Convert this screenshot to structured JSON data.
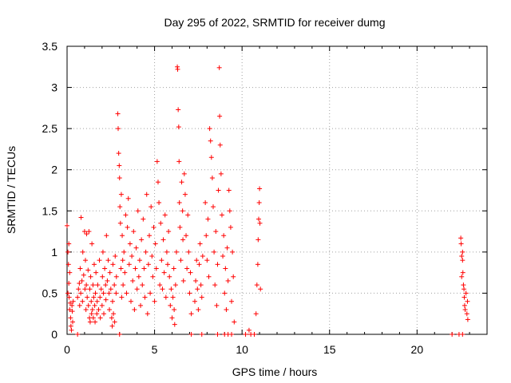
{
  "chart_data": {
    "type": "scatter",
    "title": "Day 295 of 2022, SRMTID for receiver dumg",
    "xlabel": "GPS time / hours",
    "ylabel": "SRMTID / TECUs",
    "xlim": [
      0,
      24
    ],
    "ylim": [
      0,
      3.5
    ],
    "x_ticks": [
      0,
      5,
      10,
      15,
      20
    ],
    "x_tick_labels": [
      "0",
      "5",
      "10",
      "15",
      "20"
    ],
    "y_ticks": [
      0,
      0.5,
      1,
      1.5,
      2,
      2.5,
      3,
      3.5
    ],
    "y_tick_labels": [
      "0",
      "0.5",
      "1",
      "1.5",
      "2",
      "2.5",
      "3",
      "3.5"
    ],
    "grid": true,
    "series": [
      {
        "name": "SRMTID",
        "color": "#ff0000",
        "marker": "+",
        "points": [
          [
            0.0,
            1.32
          ],
          [
            0.05,
            1.0
          ],
          [
            0.08,
            0.85
          ],
          [
            0.1,
            0.62
          ],
          [
            0.12,
            0.45
          ],
          [
            0.15,
            0.3
          ],
          [
            0.18,
            0.38
          ],
          [
            0.2,
            0.2
          ],
          [
            0.22,
            0.1
          ],
          [
            0.25,
            0.05
          ],
          [
            0.28,
            0.35
          ],
          [
            0.3,
            0.28
          ],
          [
            0.32,
            0.15
          ],
          [
            0.35,
            0.4
          ],
          [
            0.05,
            0.5
          ],
          [
            0.1,
            1.1
          ],
          [
            0.15,
            0.75
          ],
          [
            0.6,
            0.45
          ],
          [
            0.65,
            0.55
          ],
          [
            0.7,
            0.62
          ],
          [
            0.72,
            0.35
          ],
          [
            0.75,
            0.8
          ],
          [
            0.78,
            0.5
          ],
          [
            0.8,
            1.42
          ],
          [
            0.85,
            0.65
          ],
          [
            0.88,
            0.4
          ],
          [
            0.9,
            1.0
          ],
          [
            0.95,
            0.72
          ],
          [
            1.0,
            1.25
          ],
          [
            1.02,
            0.55
          ],
          [
            1.05,
            0.9
          ],
          [
            1.08,
            0.3
          ],
          [
            1.1,
            0.6
          ],
          [
            1.12,
            1.22
          ],
          [
            1.15,
            0.45
          ],
          [
            1.2,
            0.78
          ],
          [
            1.22,
            0.35
          ],
          [
            1.25,
            1.25
          ],
          [
            1.28,
            0.2
          ],
          [
            1.3,
            0.55
          ],
          [
            1.32,
            0.15
          ],
          [
            1.35,
            0.7
          ],
          [
            1.38,
            0.4
          ],
          [
            1.4,
            0.25
          ],
          [
            1.42,
            1.1
          ],
          [
            1.45,
            0.3
          ],
          [
            1.48,
            0.6
          ],
          [
            1.5,
            0.2
          ],
          [
            1.52,
            0.45
          ],
          [
            1.55,
            0.85
          ],
          [
            1.58,
            0.35
          ],
          [
            1.6,
            0.15
          ],
          [
            1.62,
            0.5
          ],
          [
            1.65,
            0.75
          ],
          [
            1.7,
            0.25
          ],
          [
            1.72,
            0.4
          ],
          [
            1.75,
            0.6
          ],
          [
            1.8,
            0.3
          ],
          [
            1.85,
            0.9
          ],
          [
            1.88,
            0.45
          ],
          [
            1.9,
            0.2
          ],
          [
            1.95,
            0.55
          ],
          [
            2.0,
            0.35
          ],
          [
            2.02,
            0.7
          ],
          [
            2.05,
            1.0
          ],
          [
            2.08,
            0.5
          ],
          [
            2.1,
            0.25
          ],
          [
            2.15,
            0.8
          ],
          [
            2.2,
            0.6
          ],
          [
            2.22,
            0.42
          ],
          [
            2.25,
            1.2
          ],
          [
            2.3,
            0.65
          ],
          [
            2.35,
            0.9
          ],
          [
            2.4,
            0.5
          ],
          [
            2.42,
            0.3
          ],
          [
            2.45,
            0.75
          ],
          [
            2.5,
            0.55
          ],
          [
            2.55,
            0.2
          ],
          [
            2.58,
            0.1
          ],
          [
            2.6,
            0.4
          ],
          [
            2.62,
            0.85
          ],
          [
            2.65,
            0.25
          ],
          [
            2.7,
            0.6
          ],
          [
            2.72,
            0.15
          ],
          [
            2.75,
            0.95
          ],
          [
            2.8,
            0.5
          ],
          [
            2.82,
            0.7
          ],
          [
            2.9,
            2.68
          ],
          [
            2.92,
            2.5
          ],
          [
            2.95,
            2.2
          ],
          [
            2.98,
            2.05
          ],
          [
            3.0,
            1.9
          ],
          [
            3.02,
            1.55
          ],
          [
            3.05,
            1.35
          ],
          [
            3.08,
            0.8
          ],
          [
            3.1,
            1.7
          ],
          [
            3.12,
            0.45
          ],
          [
            3.15,
            1.2
          ],
          [
            3.18,
            0.9
          ],
          [
            3.2,
            0.6
          ],
          [
            3.25,
            1.0
          ],
          [
            3.3,
            0.75
          ],
          [
            3.35,
            1.45
          ],
          [
            3.4,
            0.5
          ],
          [
            3.45,
            1.3
          ],
          [
            3.5,
            1.65
          ],
          [
            3.55,
            0.85
          ],
          [
            3.6,
            1.1
          ],
          [
            3.65,
            0.4
          ],
          [
            3.7,
            0.95
          ],
          [
            3.75,
            0.65
          ],
          [
            3.8,
            1.25
          ],
          [
            3.85,
            0.3
          ],
          [
            3.9,
            0.8
          ],
          [
            3.95,
            1.05
          ],
          [
            4.0,
            0.55
          ],
          [
            4.05,
            1.5
          ],
          [
            4.1,
            0.7
          ],
          [
            4.15,
            0.9
          ],
          [
            4.2,
            0.35
          ],
          [
            4.25,
            1.15
          ],
          [
            4.3,
            0.6
          ],
          [
            4.35,
            1.4
          ],
          [
            4.4,
            0.8
          ],
          [
            4.45,
            0.45
          ],
          [
            4.5,
            1.0
          ],
          [
            4.55,
            1.7
          ],
          [
            4.6,
            0.25
          ],
          [
            4.65,
            0.85
          ],
          [
            4.7,
            1.2
          ],
          [
            4.75,
            0.5
          ],
          [
            4.8,
            1.55
          ],
          [
            4.85,
            0.95
          ],
          [
            4.9,
            0.7
          ],
          [
            4.95,
            1.3
          ],
          [
            5.0,
            0.4
          ],
          [
            5.05,
            1.1
          ],
          [
            5.1,
            0.8
          ],
          [
            5.15,
            2.1
          ],
          [
            5.2,
            1.85
          ],
          [
            5.25,
            1.6
          ],
          [
            5.3,
            0.6
          ],
          [
            5.35,
            1.35
          ],
          [
            5.4,
            0.9
          ],
          [
            5.45,
            0.55
          ],
          [
            5.5,
            1.15
          ],
          [
            5.55,
            0.75
          ],
          [
            5.6,
            1.45
          ],
          [
            5.65,
            0.45
          ],
          [
            5.7,
            1.0
          ],
          [
            5.75,
            0.85
          ],
          [
            5.8,
            1.25
          ],
          [
            5.85,
            0.7
          ],
          [
            5.9,
            0.35
          ],
          [
            5.95,
            0.55
          ],
          [
            6.0,
            0.2
          ],
          [
            6.05,
            0.45
          ],
          [
            6.1,
            0.8
          ],
          [
            6.12,
            0.3
          ],
          [
            6.15,
            0.12
          ],
          [
            6.2,
            0.6
          ],
          [
            6.25,
            1.0
          ],
          [
            6.3,
            3.25
          ],
          [
            6.32,
            3.22
          ],
          [
            6.35,
            2.73
          ],
          [
            6.38,
            2.52
          ],
          [
            6.4,
            2.1
          ],
          [
            6.42,
            1.6
          ],
          [
            6.45,
            1.3
          ],
          [
            6.5,
            0.9
          ],
          [
            6.55,
            1.85
          ],
          [
            6.6,
            1.5
          ],
          [
            6.62,
            1.15
          ],
          [
            6.65,
            0.65
          ],
          [
            6.7,
            1.95
          ],
          [
            6.75,
            1.7
          ],
          [
            6.8,
            1.2
          ],
          [
            6.85,
            0.8
          ],
          [
            6.9,
            1.45
          ],
          [
            6.95,
            1.0
          ],
          [
            7.0,
            0.5
          ],
          [
            7.05,
            0.75
          ],
          [
            7.1,
            0.25
          ],
          [
            7.3,
            0.4
          ],
          [
            7.35,
            0.65
          ],
          [
            7.4,
            0.9
          ],
          [
            7.45,
            0.55
          ],
          [
            7.5,
            0.3
          ],
          [
            7.55,
            0.85
          ],
          [
            7.6,
            1.1
          ],
          [
            7.65,
            0.6
          ],
          [
            7.7,
            0.45
          ],
          [
            7.75,
            0.95
          ],
          [
            7.9,
            1.6
          ],
          [
            7.95,
            1.2
          ],
          [
            8.0,
            0.9
          ],
          [
            8.05,
            1.4
          ],
          [
            8.1,
            0.7
          ],
          [
            8.15,
            2.5
          ],
          [
            8.2,
            2.35
          ],
          [
            8.25,
            2.15
          ],
          [
            8.3,
            1.9
          ],
          [
            8.35,
            1.55
          ],
          [
            8.4,
            1.0
          ],
          [
            8.45,
            0.6
          ],
          [
            8.5,
            1.25
          ],
          [
            8.55,
            0.35
          ],
          [
            8.6,
            0.85
          ],
          [
            8.65,
            1.75
          ],
          [
            8.7,
            3.24
          ],
          [
            8.72,
            2.65
          ],
          [
            8.75,
            2.3
          ],
          [
            8.8,
            1.95
          ],
          [
            8.85,
            1.45
          ],
          [
            8.9,
            0.95
          ],
          [
            8.95,
            1.2
          ],
          [
            9.0,
            0.5
          ],
          [
            9.05,
            0.8
          ],
          [
            9.1,
            0.3
          ],
          [
            9.15,
            1.05
          ],
          [
            9.2,
            0.65
          ],
          [
            9.25,
            1.75
          ],
          [
            9.3,
            1.5
          ],
          [
            9.35,
            1.3
          ],
          [
            9.4,
            0.4
          ],
          [
            9.45,
            1.0
          ],
          [
            9.5,
            0.7
          ],
          [
            9.55,
            0.15
          ],
          [
            10.4,
            0.05
          ],
          [
            10.8,
            0.25
          ],
          [
            10.85,
            0.6
          ],
          [
            10.9,
            0.85
          ],
          [
            10.92,
            1.15
          ],
          [
            10.95,
            1.4
          ],
          [
            10.98,
            1.6
          ],
          [
            11.0,
            1.77
          ],
          [
            11.02,
            1.35
          ],
          [
            11.05,
            0.55
          ],
          [
            22.5,
            1.17
          ],
          [
            22.52,
            1.1
          ],
          [
            22.55,
            0.95
          ],
          [
            22.6,
            0.9
          ],
          [
            22.62,
            0.75
          ],
          [
            22.65,
            0.6
          ],
          [
            22.7,
            0.45
          ],
          [
            22.72,
            0.35
          ],
          [
            22.75,
            0.3
          ],
          [
            22.8,
            0.5
          ],
          [
            22.85,
            0.25
          ],
          [
            22.88,
            0.4
          ],
          [
            22.9,
            0.18
          ],
          [
            22.55,
            0.7
          ],
          [
            22.6,
            1.0
          ],
          [
            22.68,
            0.55
          ],
          [
            0.6,
            0.0
          ],
          [
            3.0,
            0.0
          ],
          [
            7.1,
            0.0
          ],
          [
            7.7,
            0.0
          ],
          [
            8.6,
            0.0
          ],
          [
            9.0,
            0.0
          ],
          [
            9.2,
            0.0
          ],
          [
            9.4,
            0.0
          ],
          [
            10.2,
            0.0
          ],
          [
            10.5,
            0.0
          ],
          [
            10.7,
            0.0
          ],
          [
            22.0,
            0.0
          ],
          [
            22.4,
            0.0
          ],
          [
            22.6,
            0.0
          ]
        ]
      }
    ]
  }
}
